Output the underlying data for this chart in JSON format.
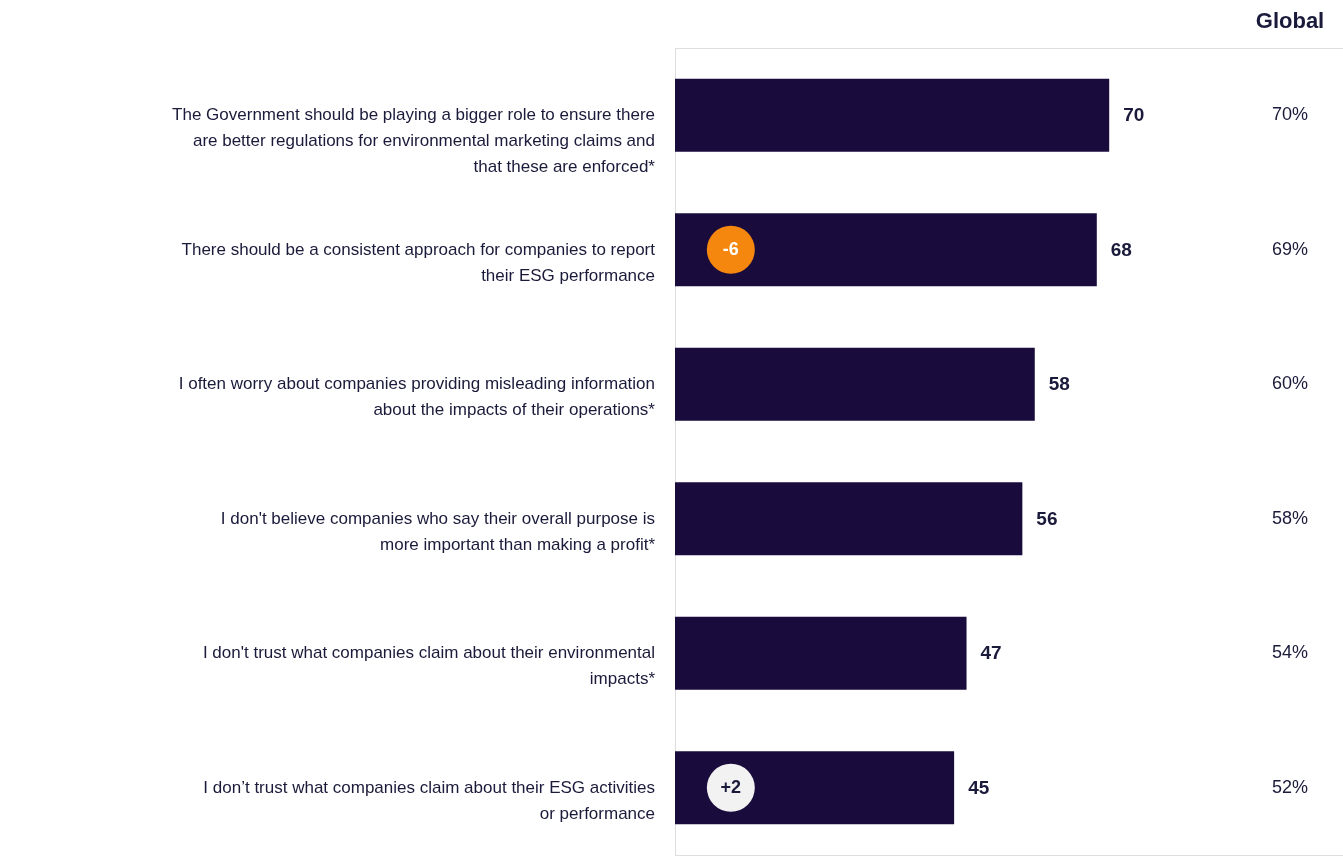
{
  "chart_data": {
    "type": "bar",
    "orientation": "horizontal",
    "categories": [
      "The Government should be playing a bigger role to ensure there are better regulations for environmental marketing claims and that these are enforced*",
      "There should be a consistent approach for companies to report their ESG performance",
      "I often worry about companies providing misleading information about the impacts of their operations*",
      "I don't believe companies who say their overall purpose is more important than making a profit*",
      "I don't trust what companies claim about their environmental impacts*",
      "I don’t trust what companies claim about their ESG activities or performance"
    ],
    "values": [
      70,
      68,
      58,
      56,
      47,
      45
    ],
    "color": "#1a0b3d",
    "data_labels": true,
    "annotations": [
      "Global",
      "70%",
      "69%",
      "60%",
      "58%",
      "54%",
      "52%",
      "-6",
      "+2"
    ]
  }
}
